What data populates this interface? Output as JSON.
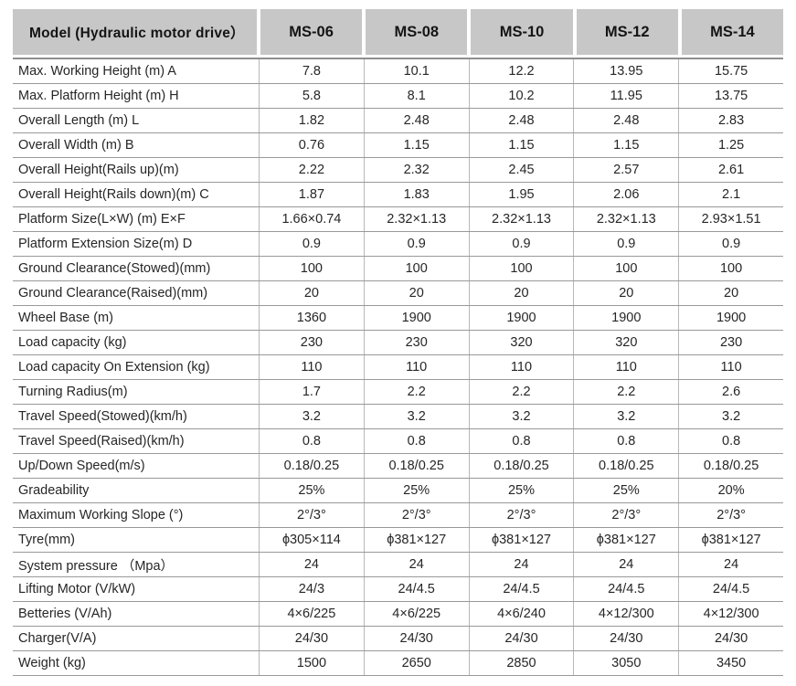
{
  "colors": {
    "header_bg": "#c7c7c7",
    "row_line": "#999999",
    "column_line": "#b8b8b8",
    "text": "#262626"
  },
  "table": {
    "model_header": "Model (Hydraulic motor drive）",
    "columns": [
      "MS-06",
      "MS-08",
      "MS-10",
      "MS-12",
      "MS-14"
    ],
    "rows": [
      {
        "label": "Max. Working Height (m) A",
        "values": [
          "7.8",
          "10.1",
          "12.2",
          "13.95",
          "15.75"
        ]
      },
      {
        "label": "Max. Platform Height (m) H",
        "values": [
          "5.8",
          "8.1",
          "10.2",
          "11.95",
          "13.75"
        ]
      },
      {
        "label": "Overall Length (m) L",
        "values": [
          "1.82",
          "2.48",
          "2.48",
          "2.48",
          "2.83"
        ]
      },
      {
        "label": "Overall Width (m) B",
        "values": [
          "0.76",
          "1.15",
          "1.15",
          "1.15",
          "1.25"
        ]
      },
      {
        "label": "Overall Height(Rails up)(m)",
        "values": [
          "2.22",
          "2.32",
          "2.45",
          "2.57",
          "2.61"
        ]
      },
      {
        "label": "Overall Height(Rails down)(m) C",
        "values": [
          "1.87",
          "1.83",
          "1.95",
          "2.06",
          "2.1"
        ]
      },
      {
        "label": "Platform Size(L×W) (m) E×F",
        "values": [
          "1.66×0.74",
          "2.32×1.13",
          "2.32×1.13",
          "2.32×1.13",
          "2.93×1.51"
        ]
      },
      {
        "label": "Platform Extension Size(m) D",
        "values": [
          "0.9",
          "0.9",
          "0.9",
          "0.9",
          "0.9"
        ]
      },
      {
        "label": "Ground Clearance(Stowed)(mm)",
        "values": [
          "100",
          "100",
          "100",
          "100",
          "100"
        ]
      },
      {
        "label": "Ground Clearance(Raised)(mm)",
        "values": [
          "20",
          "20",
          "20",
          "20",
          "20"
        ]
      },
      {
        "label": "Wheel Base (m)",
        "values": [
          "1360",
          "1900",
          "1900",
          "1900",
          "1900"
        ]
      },
      {
        "label": "Load capacity (kg)",
        "values": [
          "230",
          "230",
          "320",
          "320",
          "230"
        ]
      },
      {
        "label": "Load capacity On Extension (kg)",
        "values": [
          "110",
          "110",
          "110",
          "110",
          "110"
        ]
      },
      {
        "label": "Turning Radius(m)",
        "values": [
          "1.7",
          "2.2",
          "2.2",
          "2.2",
          "2.6"
        ]
      },
      {
        "label": "Travel Speed(Stowed)(km/h)",
        "values": [
          "3.2",
          "3.2",
          "3.2",
          "3.2",
          "3.2"
        ]
      },
      {
        "label": "Travel Speed(Raised)(km/h)",
        "values": [
          "0.8",
          "0.8",
          "0.8",
          "0.8",
          "0.8"
        ]
      },
      {
        "label": "Up/Down Speed(m/s)",
        "values": [
          "0.18/0.25",
          "0.18/0.25",
          "0.18/0.25",
          "0.18/0.25",
          "0.18/0.25"
        ]
      },
      {
        "label": "Gradeability",
        "values": [
          "25%",
          "25%",
          "25%",
          "25%",
          "20%"
        ]
      },
      {
        "label": "Maximum Working Slope (°)",
        "values": [
          "2°/3°",
          "2°/3°",
          "2°/3°",
          "2°/3°",
          "2°/3°"
        ]
      },
      {
        "label": "Tyre(mm)",
        "values": [
          "ϕ305×114",
          "ϕ381×127",
          "ϕ381×127",
          "ϕ381×127",
          "ϕ381×127"
        ]
      },
      {
        "label": "System pressure （Mpa）",
        "values": [
          "24",
          "24",
          "24",
          "24",
          "24"
        ]
      },
      {
        "label": "Lifting Motor (V/kW)",
        "values": [
          "24/3",
          "24/4.5",
          "24/4.5",
          "24/4.5",
          "24/4.5"
        ]
      },
      {
        "label": "Betteries (V/Ah)",
        "values": [
          "4×6/225",
          "4×6/225",
          "4×6/240",
          "4×12/300",
          "4×12/300"
        ]
      },
      {
        "label": "Charger(V/A)",
        "values": [
          "24/30",
          "24/30",
          "24/30",
          "24/30",
          "24/30"
        ]
      },
      {
        "label": "Weight (kg)",
        "values": [
          "1500",
          "2650",
          "2850",
          "3050",
          "3450"
        ]
      }
    ]
  }
}
